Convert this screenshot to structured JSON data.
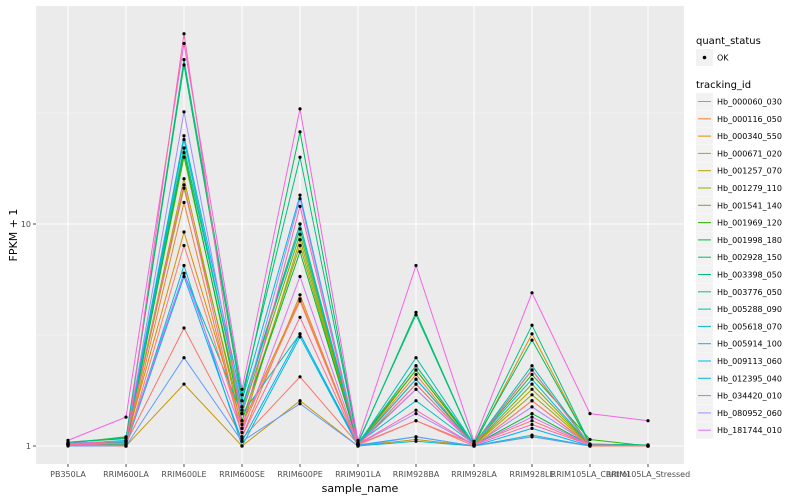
{
  "chart_data": {
    "type": "line",
    "xlabel": "sample_name",
    "ylabel": "FPKM + 1",
    "y_scale": "log10",
    "ylim": [
      1,
      17.5
    ],
    "y_ticks": [
      1,
      10
    ],
    "y_tick_labels": [
      "1",
      "10"
    ],
    "grid": true,
    "legend_position": "right",
    "categories": [
      "PB350LA",
      "RRIM600LA",
      "RRIM600LE",
      "RRIM600SE",
      "RRIM600PE",
      "RRIM901LA",
      "RRIM928BA",
      "RRIM928LA",
      "RRIM928LE",
      "RRIM105LA_Control",
      "RRIM105LA_Stressed"
    ],
    "category_tick_labels": [
      "PB350LA",
      "RRIM600LA",
      "RRIM600LE",
      "RRIM600SE",
      "RRIM600PE",
      "RRIM901LA",
      "RRIM928BA",
      "RRIM928LA",
      "RRIM928LE",
      "RRIM105LA_Control",
      "RRIM105LA_Stressed"
    ],
    "point_legend": {
      "title": "quant_status",
      "items": [
        {
          "label": "OK"
        }
      ]
    },
    "series_legend_title": "tracking_id",
    "series": [
      {
        "name": "Hb_000060_030",
        "color": "#F8766D",
        "values": [
          1.03,
          1.03,
          3.4,
          1.08,
          2.05,
          1.02,
          1.3,
          1.02,
          1.3,
          1.01,
          1.0
        ]
      },
      {
        "name": "Hb_000116_050",
        "color": "#EC823C",
        "values": [
          1.01,
          1.0,
          12.5,
          1.1,
          4.8,
          1.01,
          2.1,
          1.0,
          1.6,
          1.01,
          1.0
        ]
      },
      {
        "name": "Hb_000340_550",
        "color": "#DD8D00",
        "values": [
          1.02,
          1.05,
          9.2,
          1.25,
          4.6,
          1.01,
          2.3,
          1.01,
          3.2,
          1.01,
          1.0
        ]
      },
      {
        "name": "Hb_000671_020",
        "color": "#C99800",
        "values": [
          1.01,
          1.0,
          1.9,
          1.0,
          1.6,
          1.0,
          1.07,
          1.0,
          1.1,
          1.0,
          1.0
        ]
      },
      {
        "name": "Hb_001257_070",
        "color": "#B3A000",
        "values": [
          1.01,
          1.02,
          16.0,
          1.2,
          8.5,
          1.01,
          2.2,
          1.01,
          1.8,
          1.01,
          1.0
        ]
      },
      {
        "name": "Hb_001279_110",
        "color": "#97A900",
        "values": [
          1.02,
          1.03,
          14.5,
          1.3,
          8.0,
          1.01,
          1.9,
          1.01,
          1.7,
          1.01,
          1.0
        ]
      },
      {
        "name": "Hb_001541_140",
        "color": "#71B000",
        "values": [
          1.02,
          1.05,
          20.0,
          1.4,
          9.0,
          1.02,
          2.0,
          1.01,
          1.9,
          1.01,
          1.0
        ]
      },
      {
        "name": "Hb_001969_120",
        "color": "#2FB600",
        "values": [
          1.03,
          1.1,
          22.0,
          1.5,
          10.0,
          1.03,
          2.2,
          1.02,
          2.1,
          1.07,
          1.0
        ]
      },
      {
        "name": "Hb_001998_180",
        "color": "#00BA38",
        "values": [
          1.02,
          1.0,
          21.0,
          1.3,
          7.5,
          1.02,
          1.8,
          1.01,
          1.4,
          1.01,
          1.0
        ]
      },
      {
        "name": "Hb_002928_150",
        "color": "#00BD61",
        "values": [
          1.04,
          1.08,
          52.0,
          1.6,
          26.0,
          1.03,
          4.0,
          1.03,
          3.0,
          1.02,
          1.01
        ]
      },
      {
        "name": "Hb_003398_050",
        "color": "#00BF80",
        "values": [
          1.04,
          1.09,
          55.0,
          1.7,
          20.0,
          1.04,
          3.9,
          1.03,
          3.5,
          1.02,
          1.01
        ]
      },
      {
        "name": "Hb_003776_050",
        "color": "#00C09B",
        "values": [
          1.03,
          1.05,
          22.0,
          1.5,
          9.5,
          1.03,
          2.3,
          1.02,
          2.2,
          1.01,
          1.01
        ]
      },
      {
        "name": "Hb_005288_090",
        "color": "#00C0B4",
        "values": [
          1.02,
          1.04,
          6.0,
          1.4,
          3.2,
          1.02,
          2.5,
          1.02,
          2.3,
          1.01,
          1.0
        ]
      },
      {
        "name": "Hb_005618_070",
        "color": "#00BFC4",
        "values": [
          1.02,
          1.05,
          24.0,
          1.45,
          10.0,
          1.03,
          1.6,
          1.02,
          2.2,
          1.01,
          1.0
        ]
      },
      {
        "name": "Hb_005914_100",
        "color": "#00BBDA",
        "values": [
          1.01,
          1.0,
          6.5,
          1.0,
          3.1,
          1.0,
          1.05,
          1.0,
          1.12,
          1.0,
          1.0
        ]
      },
      {
        "name": "Hb_009113_060",
        "color": "#00B6EB",
        "values": [
          1.02,
          1.06,
          25.0,
          1.6,
          13.5,
          1.02,
          2.0,
          1.02,
          2.0,
          1.01,
          1.0
        ]
      },
      {
        "name": "Hb_012395_040",
        "color": "#00B0F6",
        "values": [
          1.01,
          1.01,
          5.8,
          1.05,
          3.2,
          1.01,
          1.1,
          1.0,
          1.2,
          1.0,
          1.0
        ]
      },
      {
        "name": "Hb_034420_010",
        "color": "#619CFF",
        "values": [
          1.0,
          1.0,
          2.5,
          1.05,
          1.55,
          1.0,
          1.1,
          1.0,
          1.1,
          1.0,
          1.0
        ]
      },
      {
        "name": "Hb_080952_060",
        "color": "#A58AFF",
        "values": [
          1.03,
          1.05,
          32.0,
          1.4,
          13.0,
          1.02,
          1.4,
          1.01,
          1.5,
          1.01,
          1.0
        ]
      },
      {
        "name": "Hb_181744_010",
        "color": "#DB72FB",
        "values": [
          1.02,
          1.03,
          6.0,
          1.15,
          5.8,
          1.01,
          1.8,
          1.01,
          1.35,
          1.01,
          1.0
        ]
      },
      {
        "name": "",
        "color": "#F564E3",
        "values": [
          1.06,
          1.35,
          65.0,
          1.8,
          33.0,
          1.06,
          6.5,
          1.05,
          4.9,
          1.4,
          1.3
        ]
      },
      {
        "name": "",
        "color": "#FF64B0",
        "values": [
          1.02,
          1.0,
          72.0,
          1.2,
          12.0,
          1.02,
          1.45,
          1.01,
          1.25,
          1.01,
          1.0
        ]
      },
      {
        "name": "",
        "color": "#FF6C91",
        "values": [
          1.02,
          1.05,
          15.0,
          1.1,
          3.8,
          1.01,
          1.9,
          1.01,
          2.2,
          1.01,
          1.0
        ]
      },
      {
        "name": "",
        "color": "#FF7C74",
        "values": [
          1.01,
          1.0,
          8.0,
          1.2,
          4.5,
          1.01,
          1.3,
          1.0,
          1.6,
          1.0,
          1.0
        ]
      }
    ]
  }
}
